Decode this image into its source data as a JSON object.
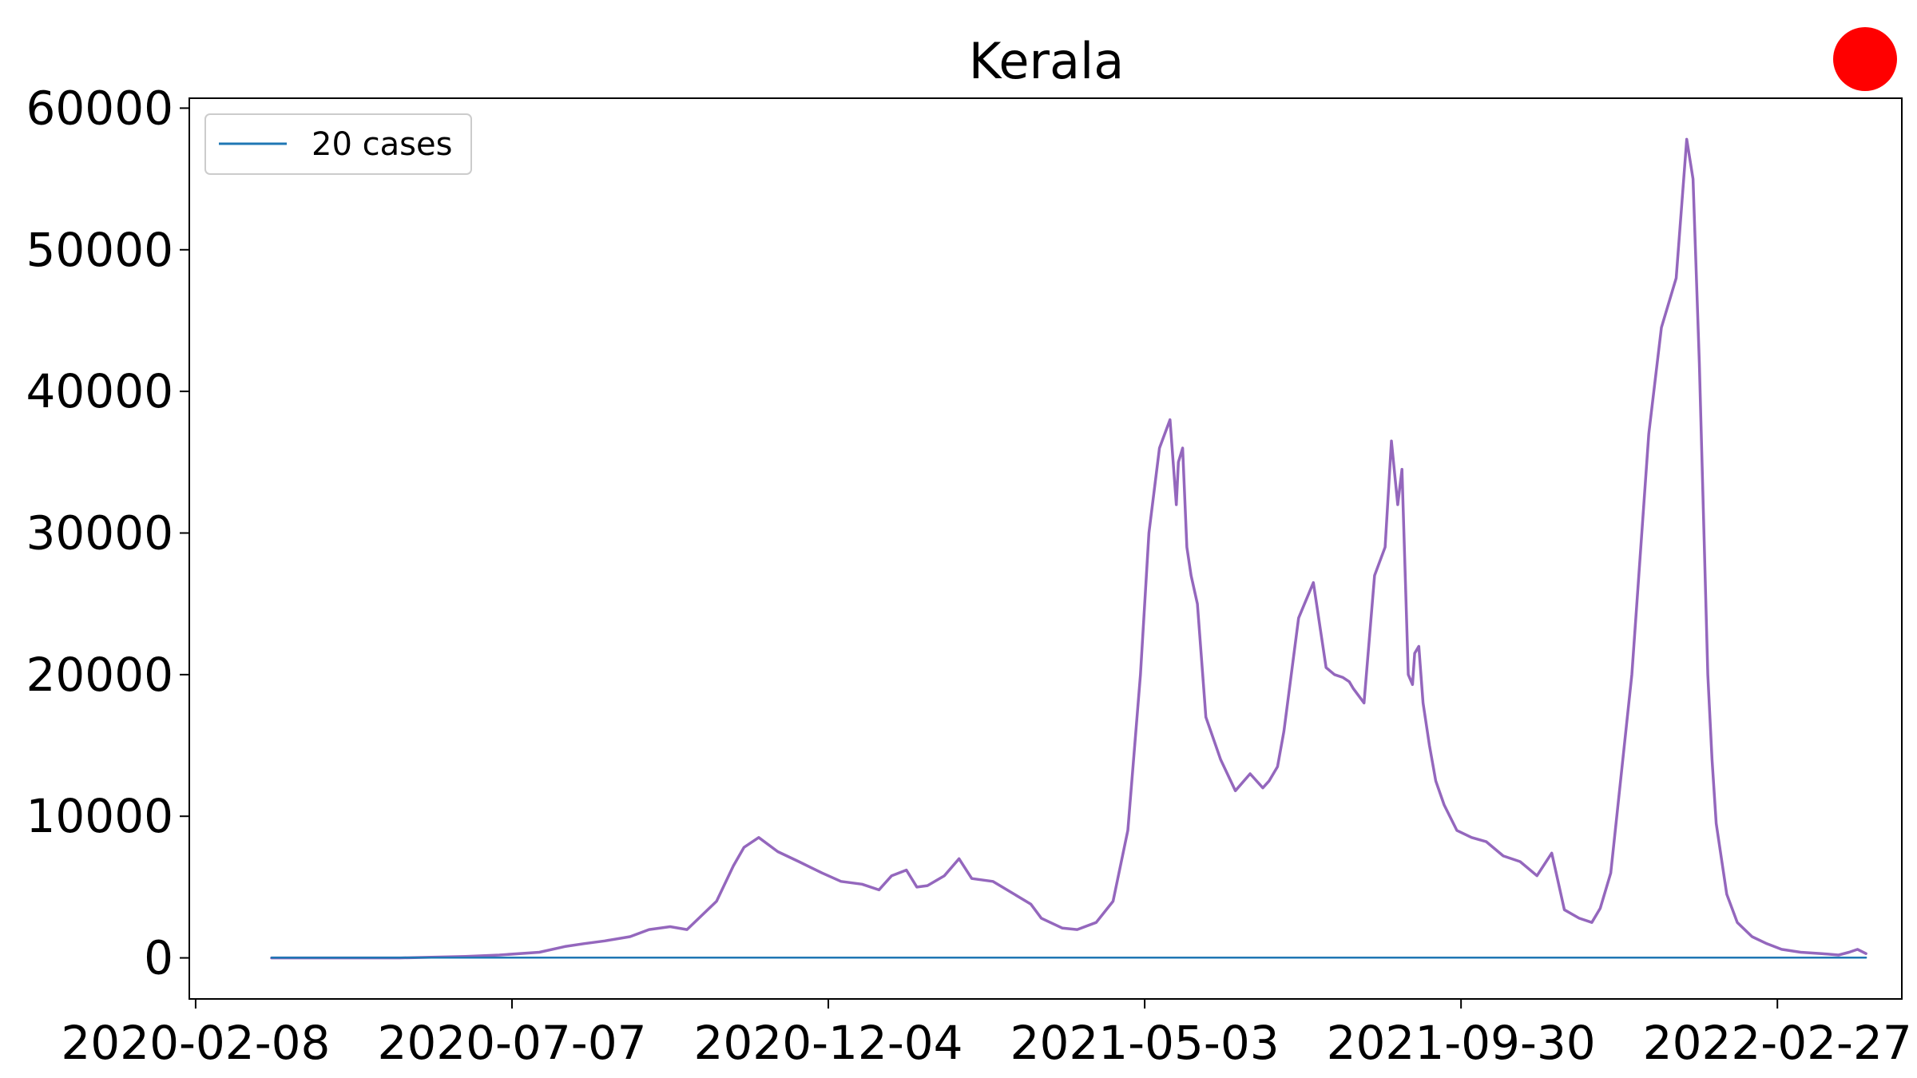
{
  "chart_data": {
    "type": "line",
    "title": "Kerala",
    "xlabel": "",
    "ylabel": "",
    "x_tick_labels": [
      "2020-02-08",
      "2020-07-07",
      "2020-12-04",
      "2021-05-03",
      "2021-09-30",
      "2022-02-27"
    ],
    "y_tick_labels": [
      "0",
      "10000",
      "20000",
      "30000",
      "40000",
      "50000",
      "60000"
    ],
    "y_ticks": [
      0,
      10000,
      20000,
      30000,
      40000,
      50000,
      60000
    ],
    "ylim": [
      -2900,
      60700
    ],
    "xlim": [
      "2020-02-05",
      "2022-04-27"
    ],
    "grid": false,
    "legend": {
      "position": "top-left",
      "entries": [
        "20 cases"
      ]
    },
    "series": [
      {
        "name": "20 cases",
        "color": "#1f77b4",
        "x": [
          "2020-03-15",
          "2022-04-10"
        ],
        "y": [
          20,
          20
        ]
      },
      {
        "color": "#9467bd",
        "x": [
          "2020-03-15",
          "2020-04-15",
          "2020-05-15",
          "2020-06-15",
          "2020-07-01",
          "2020-07-20",
          "2020-08-01",
          "2020-08-10",
          "2020-08-20",
          "2020-09-01",
          "2020-09-10",
          "2020-09-20",
          "2020-09-28",
          "2020-10-05",
          "2020-10-12",
          "2020-10-20",
          "2020-10-25",
          "2020-11-01",
          "2020-11-10",
          "2020-11-20",
          "2020-12-01",
          "2020-12-10",
          "2020-12-20",
          "2020-12-28",
          "2021-01-03",
          "2021-01-10",
          "2021-01-15",
          "2021-01-20",
          "2021-01-28",
          "2021-02-04",
          "2021-02-10",
          "2021-02-20",
          "2021-03-01",
          "2021-03-10",
          "2021-03-15",
          "2021-03-25",
          "2021-04-01",
          "2021-04-10",
          "2021-04-18",
          "2021-04-25",
          "2021-05-01",
          "2021-05-05",
          "2021-05-10",
          "2021-05-15",
          "2021-05-18",
          "2021-05-19",
          "2021-05-21",
          "2021-05-23",
          "2021-05-25",
          "2021-05-28",
          "2021-06-01",
          "2021-06-08",
          "2021-06-15",
          "2021-06-22",
          "2021-06-28",
          "2021-07-01",
          "2021-07-05",
          "2021-07-08",
          "2021-07-15",
          "2021-07-22",
          "2021-07-28",
          "2021-08-01",
          "2021-08-05",
          "2021-08-08",
          "2021-08-10",
          "2021-08-15",
          "2021-08-20",
          "2021-08-25",
          "2021-08-28",
          "2021-08-31",
          "2021-09-02",
          "2021-09-05",
          "2021-09-07",
          "2021-09-08",
          "2021-09-10",
          "2021-09-12",
          "2021-09-15",
          "2021-09-18",
          "2021-09-22",
          "2021-09-28",
          "2021-10-05",
          "2021-10-12",
          "2021-10-20",
          "2021-10-28",
          "2021-11-05",
          "2021-11-12",
          "2021-11-18",
          "2021-11-25",
          "2021-12-01",
          "2021-12-05",
          "2021-12-10",
          "2021-12-20",
          "2021-12-28",
          "2022-01-03",
          "2022-01-10",
          "2022-01-15",
          "2022-01-18",
          "2022-01-21",
          "2022-01-23",
          "2022-01-25",
          "2022-01-27",
          "2022-01-29",
          "2022-02-03",
          "2022-02-08",
          "2022-02-15",
          "2022-02-22",
          "2022-03-01",
          "2022-03-10",
          "2022-03-20",
          "2022-03-28",
          "2022-04-02",
          "2022-04-06",
          "2022-04-10"
        ],
        "y": [
          0,
          0,
          0,
          100,
          200,
          400,
          800,
          1000,
          1200,
          1500,
          2000,
          2200,
          2000,
          3000,
          4000,
          6500,
          7800,
          8500,
          7500,
          6800,
          6000,
          5400,
          5200,
          4800,
          5800,
          6200,
          5000,
          5100,
          5800,
          7000,
          5600,
          5400,
          4600,
          3800,
          2800,
          2100,
          2000,
          2500,
          4000,
          9000,
          20000,
          30000,
          36000,
          38000,
          32000,
          35000,
          36000,
          29000,
          27000,
          25000,
          17000,
          14000,
          11800,
          13000,
          12000,
          12500,
          13500,
          16000,
          24000,
          26500,
          20500,
          20000,
          19800,
          19500,
          19000,
          18000,
          27000,
          29000,
          36500,
          32000,
          34500,
          20000,
          19300,
          21500,
          22000,
          18000,
          15000,
          12500,
          10800,
          9000,
          8500,
          8200,
          7200,
          6800,
          5800,
          7400,
          3400,
          2800,
          2500,
          3500,
          6000,
          20000,
          37000,
          44500,
          48000,
          57800,
          55000,
          42000,
          31000,
          20000,
          14000,
          9500,
          4500,
          2500,
          1500,
          1000,
          600,
          400,
          300,
          200,
          400,
          600,
          300
        ]
      }
    ]
  },
  "decoration": {
    "status_dot_color": "#ff0000"
  }
}
